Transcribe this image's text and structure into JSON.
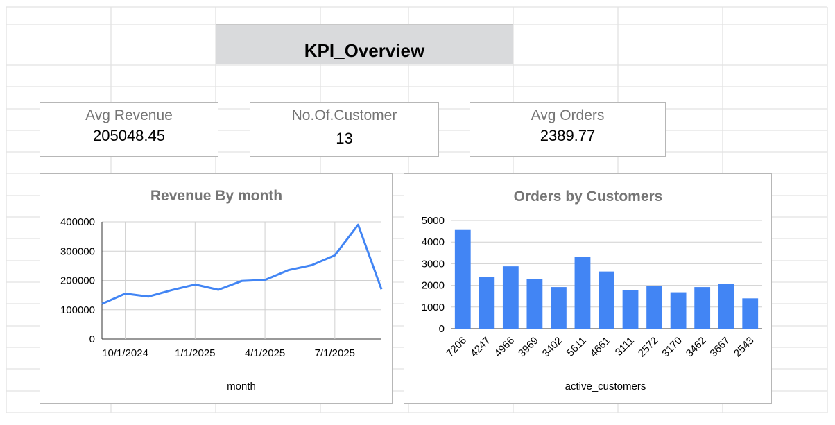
{
  "sheet": {
    "title": "KPI_Overview"
  },
  "kpis": {
    "revenue": {
      "label": "Avg Revenue",
      "value": "205048.45"
    },
    "customers": {
      "label": "No.Of.Customer",
      "value": "13"
    },
    "orders": {
      "label": "Avg Orders",
      "value": "2389.77"
    }
  },
  "colors": {
    "series": "#4285f4",
    "grid": "#d0d0d0",
    "title_fill": "#d9dadc",
    "label_gray": "#757575"
  },
  "chart_data": [
    {
      "type": "line",
      "title": "Revenue By month",
      "xlabel": "month",
      "ylabel": "",
      "ylim": [
        0,
        400000
      ],
      "y_ticks": [
        "0",
        "100000",
        "200000",
        "300000",
        "400000"
      ],
      "x_ticks": [
        "10/1/2024",
        "1/1/2025",
        "4/1/2025",
        "7/1/2025"
      ],
      "x_tick_indices": [
        1,
        4,
        7,
        10
      ],
      "grid": true,
      "x": [
        "9/1/2024",
        "10/1/2024",
        "11/1/2024",
        "12/1/2024",
        "1/1/2025",
        "2/1/2025",
        "3/1/2025",
        "4/1/2025",
        "5/1/2025",
        "6/1/2025",
        "7/1/2025",
        "8/1/2025",
        "9/1/2025"
      ],
      "values": [
        120000,
        155000,
        145000,
        167000,
        186000,
        168000,
        198000,
        202000,
        235000,
        252000,
        286000,
        390000,
        170000
      ]
    },
    {
      "type": "bar",
      "title": "Orders by Customers",
      "xlabel": "active_customers",
      "ylabel": "",
      "ylim": [
        0,
        5000
      ],
      "y_ticks": [
        "0",
        "1000",
        "2000",
        "3000",
        "4000",
        "5000"
      ],
      "grid": true,
      "categories": [
        "7206",
        "4247",
        "4966",
        "3969",
        "3402",
        "5611",
        "4661",
        "3111",
        "2572",
        "3170",
        "3462",
        "3667",
        "2543"
      ],
      "values": [
        4560,
        2400,
        2880,
        2300,
        1920,
        3320,
        2640,
        1780,
        1970,
        1680,
        1920,
        2060,
        1400
      ]
    }
  ]
}
